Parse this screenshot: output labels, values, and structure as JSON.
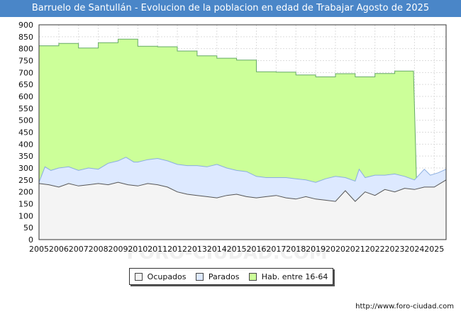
{
  "chart_data": {
    "type": "area",
    "title": "Barruelo de Santullán - Evolucion de la poblacion en edad de Trabajar Agosto de 2025",
    "source": "http://www.foro-ciudad.com",
    "watermark": "FORO-CIUDAD.COM",
    "xlabel": "",
    "ylabel": "",
    "xlim": [
      2005,
      2025.6
    ],
    "ylim": [
      0,
      900
    ],
    "yticks": [
      0,
      50,
      100,
      150,
      200,
      250,
      300,
      350,
      400,
      450,
      500,
      550,
      600,
      650,
      700,
      750,
      800,
      850,
      900
    ],
    "xticks": [
      2005,
      2006,
      2007,
      2008,
      2009,
      2010,
      2011,
      2012,
      2013,
      2014,
      2015,
      2016,
      2017,
      2018,
      2019,
      2020,
      2021,
      2022,
      2023,
      2024,
      2025
    ],
    "grid": true,
    "legend_position": "bottom",
    "series": [
      {
        "name": "Hab. entre 16-64",
        "fill": "#ccff99",
        "line": "#66aa66",
        "step": true,
        "points": [
          [
            2005,
            812
          ],
          [
            2006,
            822
          ],
          [
            2007,
            803
          ],
          [
            2008,
            825
          ],
          [
            2009,
            840
          ],
          [
            2010,
            810
          ],
          [
            2011,
            808
          ],
          [
            2012,
            790
          ],
          [
            2013,
            770
          ],
          [
            2014,
            760
          ],
          [
            2015,
            752
          ],
          [
            2016,
            703
          ],
          [
            2017,
            702
          ],
          [
            2018,
            690
          ],
          [
            2019,
            682
          ],
          [
            2020,
            695
          ],
          [
            2021,
            682
          ],
          [
            2022,
            696
          ],
          [
            2023,
            706
          ],
          [
            2023.95,
            706
          ],
          [
            2024.1,
            250
          ]
        ]
      },
      {
        "name": "Parados",
        "fill": "#dde9ff",
        "line": "#8aaee0",
        "step": false,
        "points": [
          [
            2005,
            240
          ],
          [
            2005.3,
            305
          ],
          [
            2005.6,
            290
          ],
          [
            2006,
            300
          ],
          [
            2006.5,
            305
          ],
          [
            2007,
            290
          ],
          [
            2007.5,
            300
          ],
          [
            2008,
            295
          ],
          [
            2008.5,
            320
          ],
          [
            2009,
            330
          ],
          [
            2009.4,
            345
          ],
          [
            2009.8,
            325
          ],
          [
            2010,
            325
          ],
          [
            2010.5,
            335
          ],
          [
            2011,
            340
          ],
          [
            2011.5,
            330
          ],
          [
            2012,
            315
          ],
          [
            2012.5,
            310
          ],
          [
            2013,
            310
          ],
          [
            2013.5,
            305
          ],
          [
            2014,
            315
          ],
          [
            2014.5,
            300
          ],
          [
            2015,
            290
          ],
          [
            2015.5,
            285
          ],
          [
            2016,
            265
          ],
          [
            2016.5,
            260
          ],
          [
            2017,
            260
          ],
          [
            2017.5,
            260
          ],
          [
            2018,
            255
          ],
          [
            2018.5,
            250
          ],
          [
            2019,
            240
          ],
          [
            2019.5,
            255
          ],
          [
            2020,
            265
          ],
          [
            2020.5,
            260
          ],
          [
            2021,
            245
          ],
          [
            2021.2,
            295
          ],
          [
            2021.5,
            260
          ],
          [
            2022,
            270
          ],
          [
            2022.5,
            270
          ],
          [
            2023,
            275
          ],
          [
            2023.5,
            265
          ],
          [
            2024,
            250
          ],
          [
            2024.5,
            295
          ],
          [
            2024.8,
            270
          ],
          [
            2025.2,
            280
          ],
          [
            2025.6,
            295
          ]
        ]
      },
      {
        "name": "Ocupados",
        "fill": "#f4f4f4",
        "line": "#555555",
        "step": false,
        "points": [
          [
            2005,
            235
          ],
          [
            2005.5,
            230
          ],
          [
            2006,
            220
          ],
          [
            2006.5,
            235
          ],
          [
            2007,
            225
          ],
          [
            2007.5,
            230
          ],
          [
            2008,
            235
          ],
          [
            2008.5,
            230
          ],
          [
            2009,
            240
          ],
          [
            2009.5,
            230
          ],
          [
            2010,
            225
          ],
          [
            2010.5,
            235
          ],
          [
            2011,
            230
          ],
          [
            2011.5,
            220
          ],
          [
            2012,
            200
          ],
          [
            2012.5,
            190
          ],
          [
            2013,
            185
          ],
          [
            2013.5,
            180
          ],
          [
            2014,
            175
          ],
          [
            2014.5,
            185
          ],
          [
            2015,
            190
          ],
          [
            2015.5,
            180
          ],
          [
            2016,
            175
          ],
          [
            2016.5,
            180
          ],
          [
            2017,
            185
          ],
          [
            2017.5,
            175
          ],
          [
            2018,
            170
          ],
          [
            2018.5,
            180
          ],
          [
            2019,
            170
          ],
          [
            2019.5,
            165
          ],
          [
            2020,
            160
          ],
          [
            2020.5,
            205
          ],
          [
            2021,
            160
          ],
          [
            2021.5,
            200
          ],
          [
            2022,
            185
          ],
          [
            2022.5,
            210
          ],
          [
            2023,
            200
          ],
          [
            2023.5,
            215
          ],
          [
            2024,
            210
          ],
          [
            2024.5,
            220
          ],
          [
            2025,
            220
          ],
          [
            2025.6,
            250
          ]
        ]
      }
    ],
    "legend": [
      "Ocupados",
      "Parados",
      "Hab. entre 16-64"
    ]
  }
}
